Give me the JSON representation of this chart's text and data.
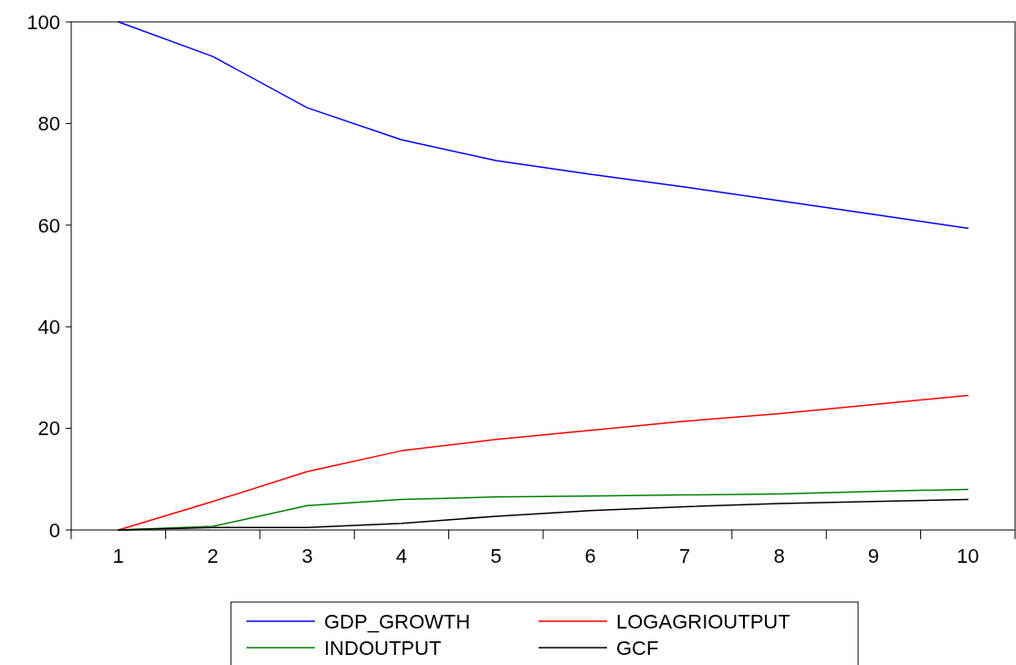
{
  "chart_data": {
    "type": "line",
    "categories": [
      "1",
      "2",
      "3",
      "4",
      "5",
      "6",
      "7",
      "8",
      "9",
      "10"
    ],
    "ylim": [
      0,
      100
    ],
    "yticks": [
      0,
      20,
      40,
      60,
      80,
      100
    ],
    "grid": false,
    "legend": "bottom",
    "line_style": "solid",
    "marker": "none",
    "series": [
      {
        "name": "GDP_GROWTH",
        "color": "#0000ff",
        "values": [
          100,
          93.2,
          83.1,
          76.8,
          72.7,
          70.0,
          67.5,
          64.8,
          62.1,
          59.4
        ]
      },
      {
        "name": "LOGAGRIOUTPUT",
        "color": "#ff0000",
        "values": [
          0,
          5.6,
          11.5,
          15.6,
          17.8,
          19.6,
          21.4,
          22.9,
          24.7,
          26.5
        ]
      },
      {
        "name": "INDOUTPUT",
        "color": "#008000",
        "values": [
          0,
          0.7,
          4.8,
          6.0,
          6.5,
          6.7,
          6.9,
          7.1,
          7.6,
          8.0
        ]
      },
      {
        "name": "GCF",
        "color": "#000000",
        "values": [
          0,
          0.5,
          0.5,
          1.3,
          2.7,
          3.8,
          4.6,
          5.2,
          5.6,
          6.0
        ]
      }
    ]
  }
}
